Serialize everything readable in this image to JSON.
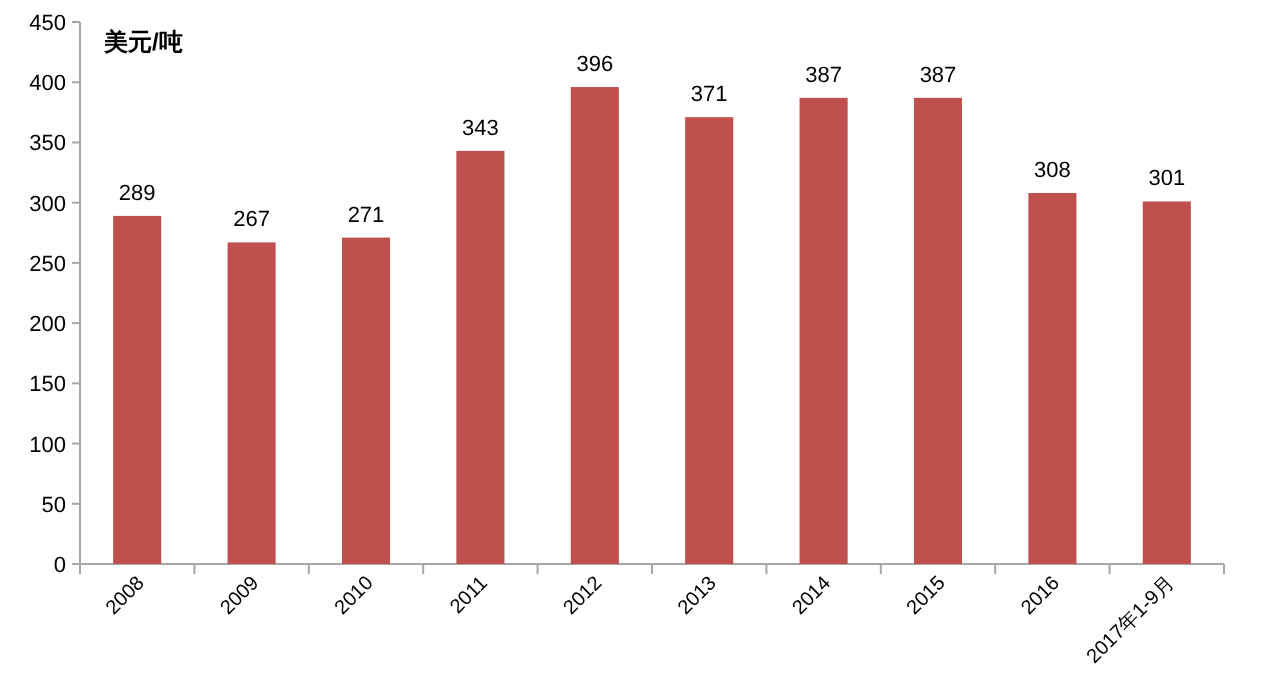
{
  "chart_data": {
    "type": "bar",
    "ylabel": "美元/吨",
    "categories": [
      "2008",
      "2009",
      "2010",
      "2011",
      "2012",
      "2013",
      "2014",
      "2015",
      "2016",
      "2017年1-9月"
    ],
    "values": [
      289,
      267,
      271,
      343,
      396,
      371,
      387,
      387,
      308,
      301
    ],
    "color": "#c0504d",
    "data_labels": true,
    "grid": false,
    "ylim": [
      0,
      450
    ],
    "yticks": [
      0,
      50,
      100,
      150,
      200,
      250,
      300,
      350,
      400,
      450
    ]
  }
}
